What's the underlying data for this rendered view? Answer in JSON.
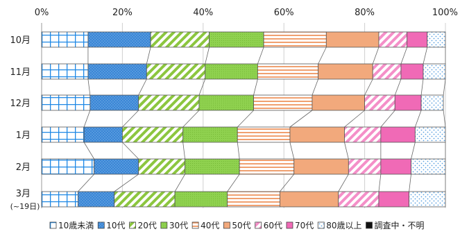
{
  "chart_data": {
    "type": "bar",
    "orientation": "horizontal",
    "stacked": "percent",
    "x_ticks": [
      "0%",
      "20%",
      "40%",
      "60%",
      "80%",
      "100%"
    ],
    "xlim": [
      0,
      100
    ],
    "categories": [
      {
        "label": "10月"
      },
      {
        "label": "11月"
      },
      {
        "label": "12月"
      },
      {
        "label": "1月"
      },
      {
        "label": "2月"
      },
      {
        "label": "3月",
        "sublabel": "(~19日)"
      }
    ],
    "series": [
      {
        "name": "10歳未満",
        "color": "#1e88e5",
        "pattern": "grid",
        "values": [
          11.5,
          11.5,
          12.0,
          10.5,
          13.0,
          9.0
        ]
      },
      {
        "name": "10代",
        "color": "#3f8fd8",
        "pattern": "dots",
        "values": [
          15.5,
          14.5,
          12.0,
          9.5,
          11.0,
          9.0
        ]
      },
      {
        "name": "20代",
        "color": "#8cc63f",
        "pattern": "diagonal",
        "values": [
          14.5,
          14.5,
          15.0,
          15.0,
          11.5,
          15.0
        ]
      },
      {
        "name": "30代",
        "color": "#8fd14f",
        "pattern": "fine-dots",
        "values": [
          13.5,
          13.0,
          13.5,
          13.5,
          13.5,
          13.0
        ]
      },
      {
        "name": "40代",
        "color": "#f0a070",
        "pattern": "horizontal",
        "values": [
          15.5,
          15.0,
          14.5,
          13.0,
          13.5,
          13.0
        ]
      },
      {
        "name": "50代",
        "color": "#f2a97c",
        "pattern": "solid",
        "values": [
          13.0,
          13.5,
          13.0,
          13.5,
          13.5,
          14.5
        ]
      },
      {
        "name": "60代",
        "color": "#f48fc8",
        "pattern": "white-diagonal",
        "values": [
          7.0,
          7.0,
          7.5,
          9.0,
          8.0,
          10.0
        ]
      },
      {
        "name": "70代",
        "color": "#f06ab6",
        "pattern": "solid",
        "values": [
          5.0,
          5.5,
          6.5,
          8.5,
          7.5,
          7.5
        ]
      },
      {
        "name": "80歳以上",
        "color": "#5aa0e0",
        "pattern": "sparse-dots",
        "values": [
          4.5,
          5.5,
          5.5,
          7.5,
          8.5,
          9.0
        ]
      },
      {
        "name": "調査中・不明",
        "color": "#111111",
        "pattern": "solid",
        "values": [
          0,
          0,
          0,
          0,
          0,
          0
        ]
      }
    ],
    "connector_lines": true,
    "legend_placement": "bottom"
  }
}
